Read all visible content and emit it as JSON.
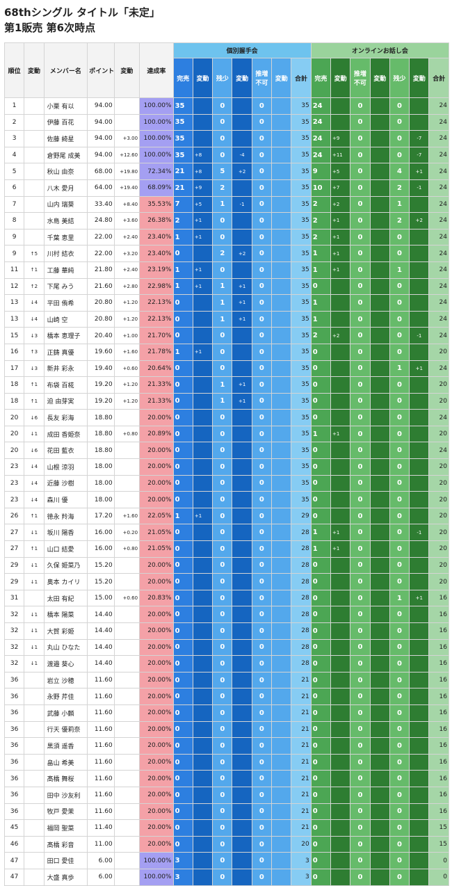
{
  "title": "68thシングル タイトル「未定」",
  "subtitle": "第1販売 第6次時点",
  "headers": {
    "rank": "順位",
    "rank_change": "変動",
    "member": "メンバー名",
    "points": "ポイント",
    "points_change": "変動",
    "rate": "達成率",
    "handshake": "個別握手会",
    "online": "オンラインお話し会",
    "sold": "完売",
    "change": "変動",
    "left": "残少",
    "unavailable": "推増\n不可",
    "total": "合計"
  },
  "rows": [
    [
      "1",
      "",
      "小栗 有以",
      "94.00",
      "",
      "100.00%",
      "35",
      "",
      "0",
      "",
      "0",
      "",
      "35",
      "24",
      "",
      "0",
      "",
      "0",
      "",
      "24"
    ],
    [
      "2",
      "",
      "伊藤 百花",
      "94.00",
      "",
      "100.00%",
      "35",
      "",
      "0",
      "",
      "0",
      "",
      "35",
      "24",
      "",
      "0",
      "",
      "0",
      "",
      "24"
    ],
    [
      "3",
      "",
      "佐藤 綺星",
      "94.00",
      "+3.00",
      "100.00%",
      "35",
      "",
      "0",
      "",
      "0",
      "",
      "35",
      "24",
      "+9",
      "0",
      "",
      "0",
      "-7",
      "24"
    ],
    [
      "4",
      "",
      "倉野尾 成美",
      "94.00",
      "+12.60",
      "100.00%",
      "35",
      "+8",
      "0",
      "-4",
      "0",
      "",
      "35",
      "24",
      "+11",
      "0",
      "",
      "0",
      "-7",
      "24"
    ],
    [
      "5",
      "",
      "秋山 由奈",
      "68.00",
      "+19.80",
      "72.34%",
      "21",
      "+8",
      "5",
      "+2",
      "0",
      "",
      "35",
      "9",
      "+5",
      "0",
      "",
      "4",
      "+1",
      "24"
    ],
    [
      "6",
      "",
      "八木 愛月",
      "64.00",
      "+19.40",
      "68.09%",
      "21",
      "+9",
      "2",
      "",
      "0",
      "",
      "35",
      "10",
      "+7",
      "0",
      "",
      "2",
      "-1",
      "24"
    ],
    [
      "7",
      "",
      "山内 瑞葵",
      "33.40",
      "+8.40",
      "35.53%",
      "7",
      "+5",
      "1",
      "-1",
      "0",
      "",
      "35",
      "2",
      "+2",
      "0",
      "",
      "1",
      "",
      "24"
    ],
    [
      "8",
      "",
      "水島 美結",
      "24.80",
      "+3.60",
      "26.38%",
      "2",
      "+1",
      "0",
      "",
      "0",
      "",
      "35",
      "2",
      "+1",
      "0",
      "",
      "2",
      "+2",
      "24"
    ],
    [
      "9",
      "",
      "千葉 恵里",
      "22.00",
      "+2.40",
      "23.40%",
      "1",
      "+1",
      "0",
      "",
      "0",
      "",
      "35",
      "2",
      "+1",
      "0",
      "",
      "0",
      "",
      "24"
    ],
    [
      "9",
      "↑5",
      "川村 結衣",
      "22.00",
      "+3.20",
      "23.40%",
      "0",
      "",
      "2",
      "+2",
      "0",
      "",
      "35",
      "1",
      "+1",
      "0",
      "",
      "0",
      "",
      "24"
    ],
    [
      "11",
      "↑1",
      "工藤 華純",
      "21.80",
      "+2.40",
      "23.19%",
      "1",
      "+1",
      "0",
      "",
      "0",
      "",
      "35",
      "1",
      "+1",
      "0",
      "",
      "1",
      "",
      "24"
    ],
    [
      "12",
      "↑2",
      "下尾 みう",
      "21.60",
      "+2.80",
      "22.98%",
      "1",
      "+1",
      "1",
      "+1",
      "0",
      "",
      "35",
      "0",
      "",
      "0",
      "",
      "0",
      "",
      "24"
    ],
    [
      "13",
      "↓4",
      "平田 侑希",
      "20.80",
      "+1.20",
      "22.13%",
      "0",
      "",
      "1",
      "+1",
      "0",
      "",
      "35",
      "1",
      "",
      "0",
      "",
      "0",
      "",
      "24"
    ],
    [
      "13",
      "↓4",
      "山崎 空",
      "20.80",
      "+1.20",
      "22.13%",
      "0",
      "",
      "1",
      "+1",
      "0",
      "",
      "35",
      "1",
      "",
      "0",
      "",
      "0",
      "",
      "24"
    ],
    [
      "15",
      "↓3",
      "橋本 恵理子",
      "20.40",
      "+1.00",
      "21.70%",
      "0",
      "",
      "0",
      "",
      "0",
      "",
      "35",
      "2",
      "+2",
      "0",
      "",
      "0",
      "-1",
      "24"
    ],
    [
      "16",
      "↑3",
      "正鋳 真優",
      "19.60",
      "+1.60",
      "21.78%",
      "1",
      "+1",
      "0",
      "",
      "0",
      "",
      "35",
      "0",
      "",
      "0",
      "",
      "0",
      "",
      "20"
    ],
    [
      "17",
      "↓3",
      "新井 彩永",
      "19.40",
      "+0.60",
      "20.64%",
      "0",
      "",
      "0",
      "",
      "0",
      "",
      "35",
      "0",
      "",
      "0",
      "",
      "1",
      "+1",
      "24"
    ],
    [
      "18",
      "↑1",
      "布袋 百椛",
      "19.20",
      "+1.20",
      "21.33%",
      "0",
      "",
      "1",
      "+1",
      "0",
      "",
      "35",
      "0",
      "",
      "0",
      "",
      "0",
      "",
      "20"
    ],
    [
      "18",
      "↑1",
      "迫 由芽実",
      "19.20",
      "+1.20",
      "21.33%",
      "0",
      "",
      "1",
      "+1",
      "0",
      "",
      "35",
      "0",
      "",
      "0",
      "",
      "0",
      "",
      "20"
    ],
    [
      "20",
      "↓6",
      "長友 彩海",
      "18.80",
      "",
      "20.00%",
      "0",
      "",
      "0",
      "",
      "0",
      "",
      "35",
      "0",
      "",
      "0",
      "",
      "0",
      "",
      "24"
    ],
    [
      "20",
      "↓1",
      "成田 香姫奈",
      "18.80",
      "+0.80",
      "20.89%",
      "0",
      "",
      "0",
      "",
      "0",
      "",
      "35",
      "1",
      "+1",
      "0",
      "",
      "0",
      "",
      "20"
    ],
    [
      "20",
      "↓6",
      "花田 藍衣",
      "18.80",
      "",
      "20.00%",
      "0",
      "",
      "0",
      "",
      "0",
      "",
      "35",
      "0",
      "",
      "0",
      "",
      "0",
      "",
      "24"
    ],
    [
      "23",
      "↓4",
      "山根 涼羽",
      "18.00",
      "",
      "20.00%",
      "0",
      "",
      "0",
      "",
      "0",
      "",
      "35",
      "0",
      "",
      "0",
      "",
      "0",
      "",
      "20"
    ],
    [
      "23",
      "↓4",
      "近藤 沙樹",
      "18.00",
      "",
      "20.00%",
      "0",
      "",
      "0",
      "",
      "0",
      "",
      "35",
      "0",
      "",
      "0",
      "",
      "0",
      "",
      "20"
    ],
    [
      "23",
      "↓4",
      "森川 優",
      "18.00",
      "",
      "20.00%",
      "0",
      "",
      "0",
      "",
      "0",
      "",
      "35",
      "0",
      "",
      "0",
      "",
      "0",
      "",
      "20"
    ],
    [
      "26",
      "↑1",
      "徳永 羚海",
      "17.20",
      "+1.60",
      "22.05%",
      "1",
      "+1",
      "0",
      "",
      "0",
      "",
      "29",
      "0",
      "",
      "0",
      "",
      "0",
      "",
      "20"
    ],
    [
      "27",
      "↓1",
      "坂川 陽香",
      "16.00",
      "+0.20",
      "21.05%",
      "0",
      "",
      "0",
      "",
      "0",
      "",
      "28",
      "1",
      "+1",
      "0",
      "",
      "0",
      "-1",
      "20"
    ],
    [
      "27",
      "↑1",
      "山口 結愛",
      "16.00",
      "+0.80",
      "21.05%",
      "0",
      "",
      "0",
      "",
      "0",
      "",
      "28",
      "1",
      "+1",
      "0",
      "",
      "0",
      "",
      "20"
    ],
    [
      "29",
      "↓1",
      "久保 姫菜乃",
      "15.20",
      "",
      "20.00%",
      "0",
      "",
      "0",
      "",
      "0",
      "",
      "28",
      "0",
      "",
      "0",
      "",
      "0",
      "",
      "20"
    ],
    [
      "29",
      "↓1",
      "奥本 カイリ",
      "15.20",
      "",
      "20.00%",
      "0",
      "",
      "0",
      "",
      "0",
      "",
      "28",
      "0",
      "",
      "0",
      "",
      "0",
      "",
      "20"
    ],
    [
      "31",
      "",
      "太田 有紀",
      "15.00",
      "+0.60",
      "20.83%",
      "0",
      "",
      "0",
      "",
      "0",
      "",
      "28",
      "0",
      "",
      "0",
      "",
      "1",
      "+1",
      "16"
    ],
    [
      "32",
      "↓1",
      "橋本 陽菜",
      "14.40",
      "",
      "20.00%",
      "0",
      "",
      "0",
      "",
      "0",
      "",
      "28",
      "0",
      "",
      "0",
      "",
      "0",
      "",
      "16"
    ],
    [
      "32",
      "↓1",
      "大賀 彩姫",
      "14.40",
      "",
      "20.00%",
      "0",
      "",
      "0",
      "",
      "0",
      "",
      "28",
      "0",
      "",
      "0",
      "",
      "0",
      "",
      "16"
    ],
    [
      "32",
      "↓1",
      "丸山 ひなた",
      "14.40",
      "",
      "20.00%",
      "0",
      "",
      "0",
      "",
      "0",
      "",
      "28",
      "0",
      "",
      "0",
      "",
      "0",
      "",
      "16"
    ],
    [
      "32",
      "↓1",
      "渡邉 葵心",
      "14.40",
      "",
      "20.00%",
      "0",
      "",
      "0",
      "",
      "0",
      "",
      "28",
      "0",
      "",
      "0",
      "",
      "0",
      "",
      "16"
    ],
    [
      "36",
      "",
      "岩立 沙穂",
      "11.60",
      "",
      "20.00%",
      "0",
      "",
      "0",
      "",
      "0",
      "",
      "21",
      "0",
      "",
      "0",
      "",
      "0",
      "",
      "16"
    ],
    [
      "36",
      "",
      "永野 芹佳",
      "11.60",
      "",
      "20.00%",
      "0",
      "",
      "0",
      "",
      "0",
      "",
      "21",
      "0",
      "",
      "0",
      "",
      "0",
      "",
      "16"
    ],
    [
      "36",
      "",
      "武藤 小麟",
      "11.60",
      "",
      "20.00%",
      "0",
      "",
      "0",
      "",
      "0",
      "",
      "21",
      "0",
      "",
      "0",
      "",
      "0",
      "",
      "16"
    ],
    [
      "36",
      "",
      "行天 優莉奈",
      "11.60",
      "",
      "20.00%",
      "0",
      "",
      "0",
      "",
      "0",
      "",
      "21",
      "0",
      "",
      "0",
      "",
      "0",
      "",
      "16"
    ],
    [
      "36",
      "",
      "黒須 遥香",
      "11.60",
      "",
      "20.00%",
      "0",
      "",
      "0",
      "",
      "0",
      "",
      "21",
      "0",
      "",
      "0",
      "",
      "0",
      "",
      "16"
    ],
    [
      "36",
      "",
      "畠山 希美",
      "11.60",
      "",
      "20.00%",
      "0",
      "",
      "0",
      "",
      "0",
      "",
      "21",
      "0",
      "",
      "0",
      "",
      "0",
      "",
      "16"
    ],
    [
      "36",
      "",
      "髙橋 舞桜",
      "11.60",
      "",
      "20.00%",
      "0",
      "",
      "0",
      "",
      "0",
      "",
      "21",
      "0",
      "",
      "0",
      "",
      "0",
      "",
      "16"
    ],
    [
      "36",
      "",
      "田中 沙友利",
      "11.60",
      "",
      "20.00%",
      "0",
      "",
      "0",
      "",
      "0",
      "",
      "21",
      "0",
      "",
      "0",
      "",
      "0",
      "",
      "16"
    ],
    [
      "36",
      "",
      "牧戸 愛茉",
      "11.60",
      "",
      "20.00%",
      "0",
      "",
      "0",
      "",
      "0",
      "",
      "21",
      "0",
      "",
      "0",
      "",
      "0",
      "",
      "16"
    ],
    [
      "45",
      "",
      "福岡 聖菜",
      "11.40",
      "",
      "20.00%",
      "0",
      "",
      "0",
      "",
      "0",
      "",
      "21",
      "0",
      "",
      "0",
      "",
      "0",
      "",
      "15"
    ],
    [
      "46",
      "",
      "髙橋 彩音",
      "11.00",
      "",
      "20.00%",
      "0",
      "",
      "0",
      "",
      "0",
      "",
      "20",
      "0",
      "",
      "0",
      "",
      "0",
      "",
      "15"
    ],
    [
      "47",
      "",
      "田口 愛佳",
      "6.00",
      "",
      "100.00%",
      "3",
      "",
      "0",
      "",
      "0",
      "",
      "3",
      "0",
      "",
      "0",
      "",
      "0",
      "",
      "0"
    ],
    [
      "47",
      "",
      "大盛 真歩",
      "6.00",
      "",
      "100.00%",
      "3",
      "",
      "0",
      "",
      "0",
      "",
      "3",
      "0",
      "",
      "0",
      "",
      "0",
      "",
      "0"
    ]
  ]
}
